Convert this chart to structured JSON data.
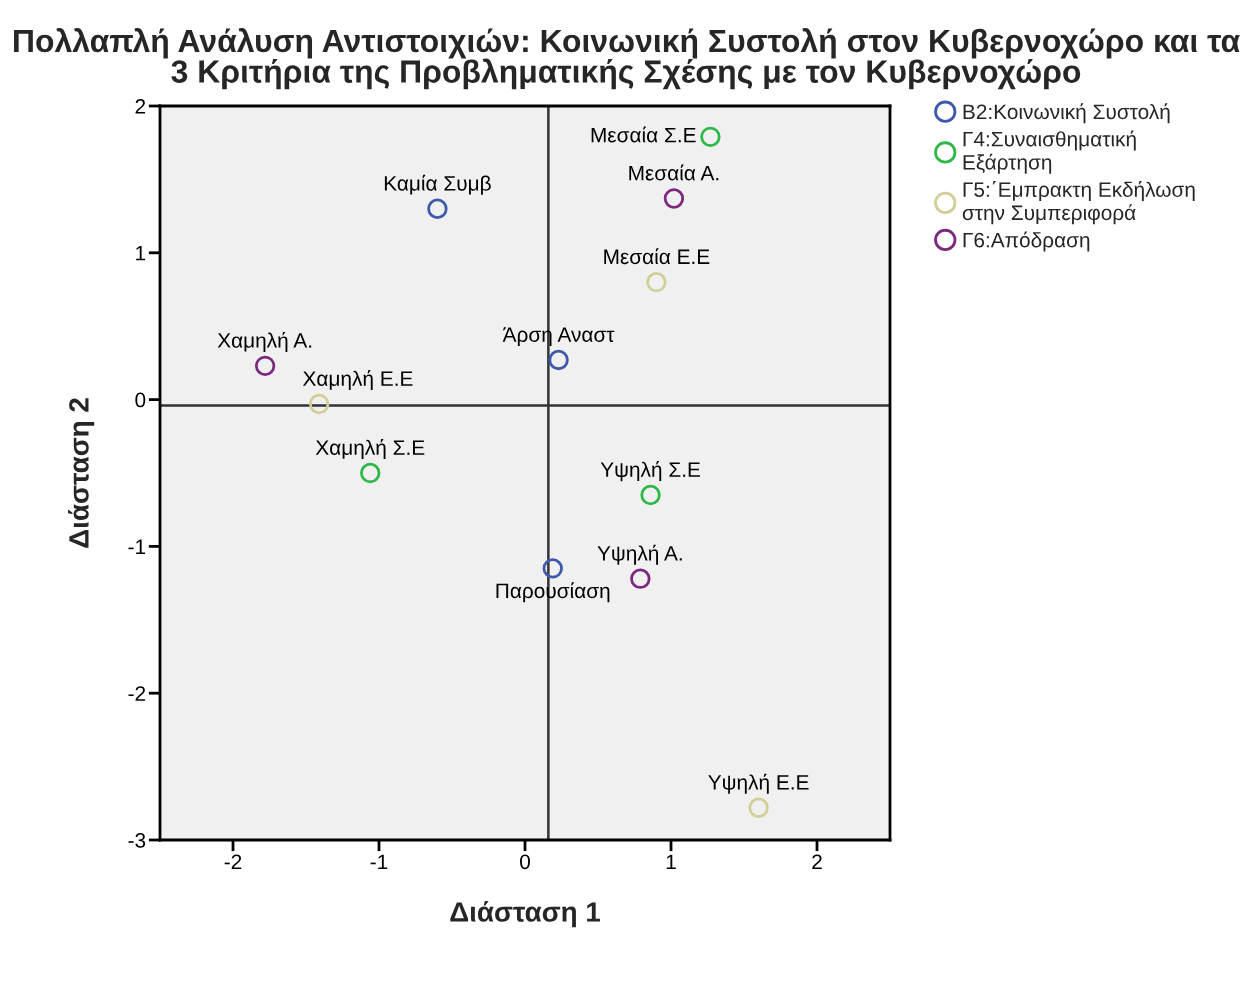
{
  "chart_data": {
    "type": "scatter",
    "title": "Πολλαπλή Ανάλυση Αντιστοιχιών: Κοινωνική Συστολή στον Κυβερνοχώρο και τα 3 Κριτήρια της Προβληματικής Σχέσης με τον Κυβερνοχώρο",
    "xlabel": "Διάσταση 1",
    "ylabel": "Διάσταση 2",
    "xlim": [
      -2.5,
      2.5
    ],
    "ylim": [
      -3,
      2
    ],
    "xticks": [
      -2,
      -1,
      0,
      1,
      2
    ],
    "yticks": [
      -3,
      -2,
      -1,
      0,
      1,
      2
    ],
    "grid": false,
    "legend": "right",
    "marker": "circle",
    "series": [
      {
        "name": "Β2:Κοινωνική Συστολή",
        "color": "#3e58ac",
        "x": [
          -0.6,
          0.23,
          0.19
        ],
        "values": [
          1.3,
          0.27,
          -1.15
        ]
      },
      {
        "name": "Γ4:Συναισθηματική Εξάρτηση",
        "color": "#2eb848",
        "x": [
          1.27,
          -1.06,
          0.86
        ],
        "values": [
          1.79,
          -0.5,
          -0.65
        ]
      },
      {
        "name": "Γ5:΄Εμπρακτη Εκδήλωση στην Συμπεριφορά",
        "color": "#d3ce97",
        "x": [
          0.9,
          -1.41,
          1.6
        ],
        "values": [
          0.8,
          -0.03,
          -2.78
        ]
      },
      {
        "name": "Γ6:Απόδραση",
        "color": "#7c287d",
        "x": [
          1.02,
          -1.78,
          0.79
        ],
        "values": [
          1.37,
          0.23,
          -1.22
        ]
      }
    ],
    "ref_lines": [
      {
        "axis": "x",
        "value": 0.16,
        "color": "#333333"
      },
      {
        "axis": "y",
        "value": -0.04,
        "color": "#333333"
      }
    ],
    "annotations": [
      {
        "text": "Μεσαία Α.",
        "x": 1.02,
        "y": 1.37
      },
      {
        "text": "Μεσαία Σ.Ε",
        "x": 1.27,
        "y": 1.79
      },
      {
        "text": "Καμία Συμβ",
        "x": -0.6,
        "y": 1.3
      },
      {
        "text": "Μεσαία Ε.Ε",
        "x": 0.9,
        "y": 0.8
      },
      {
        "text": "Άρση Αναστ",
        "x": 0.23,
        "y": 0.27
      },
      {
        "text": "Χαμηλή Α.",
        "x": -1.78,
        "y": 0.23
      },
      {
        "text": "Χαμηλή Ε.Ε",
        "x": -1.41,
        "y": -0.03
      },
      {
        "text": "Χαμηλή Σ.Ε",
        "x": -1.06,
        "y": -0.5
      },
      {
        "text": "Υψηλή Σ.Ε",
        "x": 0.86,
        "y": -0.65
      },
      {
        "text": "Υψηλή Α.",
        "x": 0.79,
        "y": -1.22
      },
      {
        "text": "Παρουσίαση",
        "x": 0.19,
        "y": -1.15
      },
      {
        "text": "Υψηλή Ε.Ε",
        "x": 1.6,
        "y": -2.78
      }
    ]
  }
}
